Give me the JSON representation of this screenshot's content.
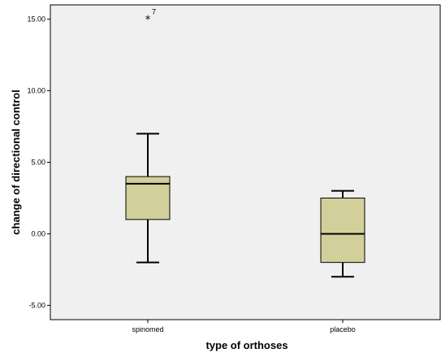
{
  "chart_data": {
    "type": "boxplot",
    "xlabel": "type of orthoses",
    "ylabel": "change of directional control",
    "ylim": [
      -6,
      16
    ],
    "yticks": [
      -5,
      0,
      5,
      10,
      15
    ],
    "ytick_labels": [
      "-5.00",
      "0.00",
      "5.00",
      "10.00",
      "15.00"
    ],
    "categories": [
      "spinomed",
      "placebo"
    ],
    "boxes": [
      {
        "category": "spinomed",
        "min": -2,
        "q1": 1,
        "median": 3.5,
        "q3": 4,
        "max": 7,
        "outliers": [
          {
            "value": 15,
            "label": "7",
            "marker": "*"
          }
        ]
      },
      {
        "category": "placebo",
        "min": -3,
        "q1": -2,
        "median": 0,
        "q3": 2.5,
        "max": 3,
        "outliers": []
      }
    ],
    "grid": false,
    "colors": {
      "plot_bg": "#f0f0f0",
      "box_fill": "#d3cf9a",
      "line": "#000000"
    }
  }
}
